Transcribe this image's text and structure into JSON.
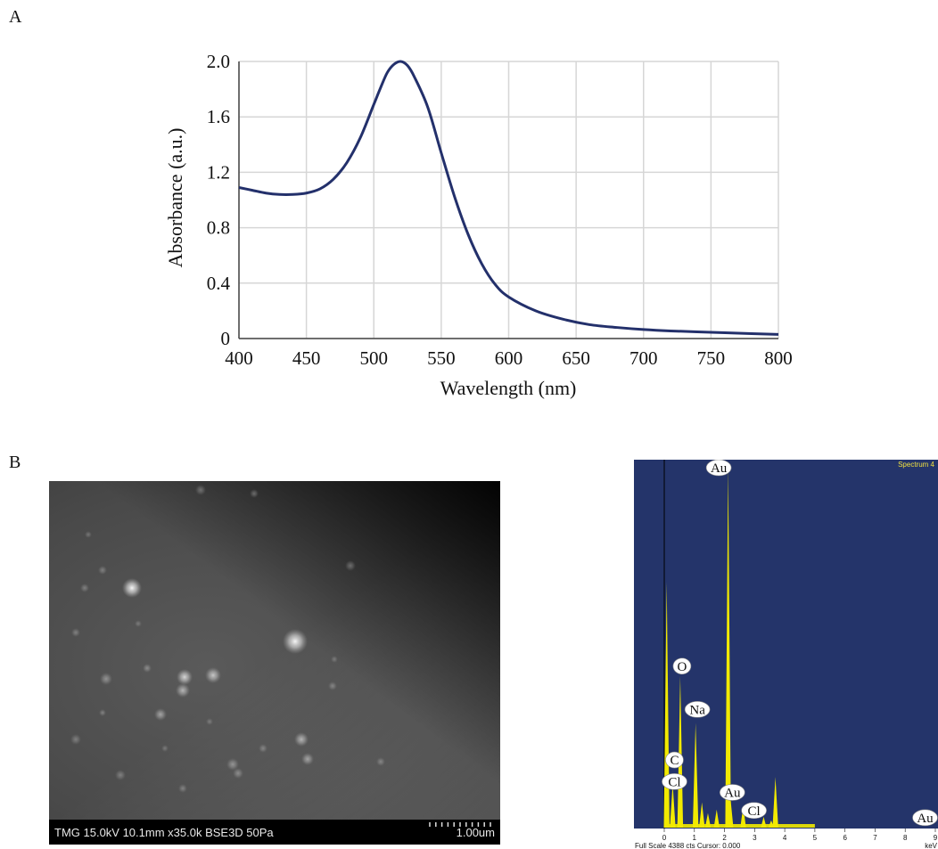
{
  "panels": {
    "a": "A",
    "b": "B"
  },
  "chart_data": [
    {
      "type": "line",
      "xlabel": "Wavelength (nm)",
      "ylabel": "Absorbance (a.u.)",
      "xlim": [
        400,
        800
      ],
      "ylim": [
        0,
        2.0
      ],
      "xticks": [
        400,
        450,
        500,
        550,
        600,
        650,
        700,
        750,
        800
      ],
      "yticks": [
        "0",
        "0.4",
        "0.8",
        "1.2",
        "1.6",
        "2.0"
      ],
      "grid": true,
      "line_color": "#23306b",
      "x": [
        400,
        410,
        420,
        430,
        440,
        450,
        460,
        470,
        480,
        490,
        500,
        505,
        510,
        515,
        520,
        525,
        530,
        540,
        550,
        560,
        570,
        580,
        590,
        600,
        620,
        640,
        660,
        680,
        700,
        720,
        750,
        780,
        800
      ],
      "y": [
        1.09,
        1.07,
        1.05,
        1.04,
        1.04,
        1.05,
        1.08,
        1.15,
        1.27,
        1.45,
        1.69,
        1.81,
        1.92,
        1.98,
        2.0,
        1.97,
        1.89,
        1.67,
        1.34,
        1.02,
        0.75,
        0.54,
        0.39,
        0.3,
        0.2,
        0.14,
        0.1,
        0.08,
        0.065,
        0.055,
        0.045,
        0.035,
        0.03
      ]
    },
    {
      "type": "bar",
      "title": "Spectrum 4",
      "xlabel": "keV",
      "xlim": [
        -1,
        9
      ],
      "xticks": [
        "0",
        "1",
        "2",
        "3",
        "4",
        "5",
        "6",
        "7",
        "8",
        "9"
      ],
      "footer": "Full Scale 4388 cts Cursor: 0.000",
      "background": "#24346a",
      "peak_color": "#f2ea00",
      "peaks": [
        {
          "kev": 0.08,
          "counts": 0.68
        },
        {
          "kev": 0.28,
          "counts": 0.12
        },
        {
          "kev": 0.52,
          "counts": 0.1
        },
        {
          "kev": 0.53,
          "counts": 0.42
        },
        {
          "kev": 1.04,
          "counts": 0.29
        },
        {
          "kev": 1.25,
          "counts": 0.07
        },
        {
          "kev": 1.45,
          "counts": 0.04
        },
        {
          "kev": 1.74,
          "counts": 0.05
        },
        {
          "kev": 2.12,
          "counts": 1.0
        },
        {
          "kev": 2.2,
          "counts": 0.08
        },
        {
          "kev": 2.62,
          "counts": 0.06
        },
        {
          "kev": 3.3,
          "counts": 0.03
        },
        {
          "kev": 3.55,
          "counts": 0.02
        },
        {
          "kev": 3.69,
          "counts": 0.14
        },
        {
          "kev": 9.7,
          "counts": 0.01
        }
      ],
      "labels": [
        {
          "text": "Au",
          "kev": 1.75,
          "counts": 1.0
        },
        {
          "text": "O",
          "kev": 0.53,
          "counts": 0.45
        },
        {
          "text": "Na",
          "kev": 1.04,
          "counts": 0.33
        },
        {
          "text": "C",
          "kev": 0.28,
          "counts": 0.19
        },
        {
          "text": "Cl",
          "kev": 0.28,
          "counts": 0.13
        },
        {
          "text": "Au",
          "kev": 2.2,
          "counts": 0.1
        },
        {
          "text": "Cl",
          "kev": 2.92,
          "counts": 0.05
        },
        {
          "text": "Au",
          "kev": 8.6,
          "counts": 0.03
        }
      ]
    }
  ],
  "sem": {
    "info": "TMG 15.0kV 10.1mm x35.0k BSE3D 50Pa",
    "scale": "1.00um"
  }
}
